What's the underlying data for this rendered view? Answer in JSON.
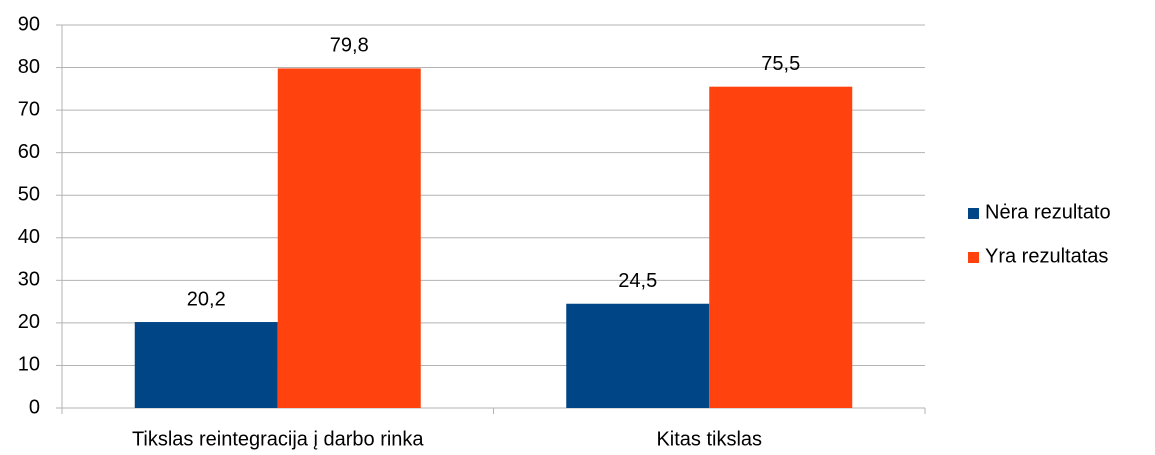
{
  "chart_data": {
    "type": "bar",
    "categories": [
      "Tikslas reintegracija į darbo rinka",
      "Kitas tikslas"
    ],
    "series": [
      {
        "name": "Nėra rezultato",
        "color": "#004586",
        "values": [
          20.2,
          24.5
        ],
        "value_labels": [
          "20,2",
          "24,5"
        ]
      },
      {
        "name": "Yra rezultatas",
        "color": "#ff420e",
        "values": [
          79.8,
          75.5
        ],
        "value_labels": [
          "79,8",
          "75,5"
        ]
      }
    ],
    "ylim": [
      0,
      90
    ],
    "yticks": [
      0,
      10,
      20,
      30,
      40,
      50,
      60,
      70,
      80,
      90
    ],
    "grid": true,
    "legend": "right"
  }
}
